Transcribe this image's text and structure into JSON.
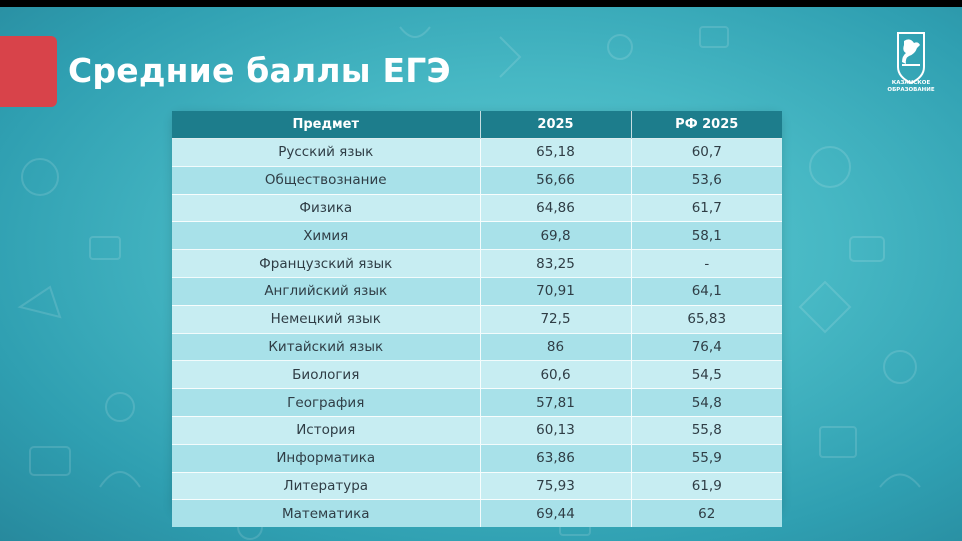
{
  "slide": {
    "title": "Средние баллы ЕГЭ",
    "logo_text": "КАЗАНСКОЕ ОБРАЗОВАНИЕ"
  },
  "colors": {
    "background": "#47b8c4",
    "accent": "#d8434a",
    "table_header": "#1d7d8c",
    "row_light": "#c7edf2",
    "row_dark": "#a8e1e9"
  },
  "table": {
    "headers": [
      "Предмет",
      "2025",
      "РФ 2025"
    ],
    "rows": [
      [
        "Русский язык",
        "65,18",
        "60,7"
      ],
      [
        "Обществознание",
        "56,66",
        "53,6"
      ],
      [
        "Физика",
        "64,86",
        "61,7"
      ],
      [
        "Химия",
        "69,8",
        "58,1"
      ],
      [
        "Французский язык",
        "83,25",
        "-"
      ],
      [
        "Английский язык",
        "70,91",
        "64,1"
      ],
      [
        "Немецкий язык",
        "72,5",
        "65,83"
      ],
      [
        "Китайский язык",
        "86",
        "76,4"
      ],
      [
        "Биология",
        "60,6",
        "54,5"
      ],
      [
        "География",
        "57,81",
        "54,8"
      ],
      [
        "История",
        "60,13",
        "55,8"
      ],
      [
        "Информатика",
        "63,86",
        "55,9"
      ],
      [
        "Литература",
        "75,93",
        "61,9"
      ],
      [
        "Математика",
        "69,44",
        "62"
      ]
    ]
  }
}
